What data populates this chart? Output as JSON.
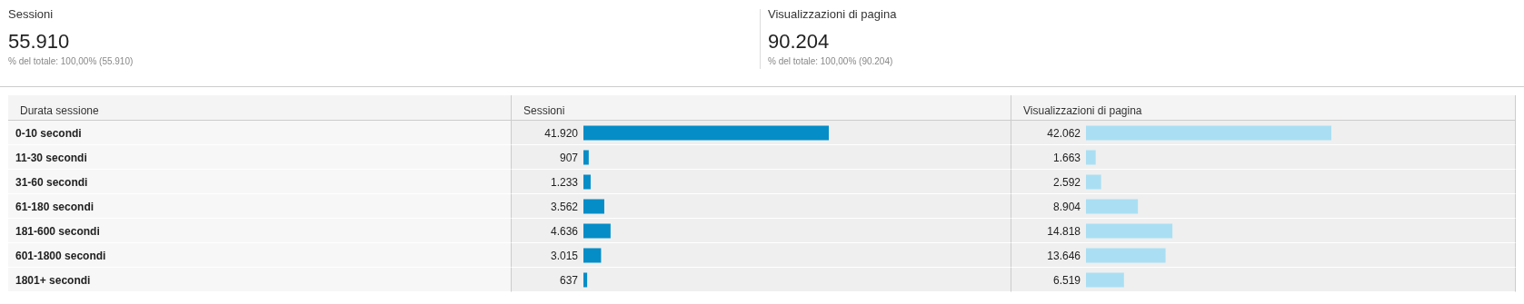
{
  "chart_data": [
    {
      "type": "other",
      "title": "Sessioni",
      "annotations": [
        "55.910",
        "% del totale: 100,00% (55.910)"
      ]
    },
    {
      "type": "other",
      "title": "Visualizzazioni di pagina",
      "annotations": [
        "90.204",
        "% del totale: 100,00% (90.204)"
      ]
    },
    {
      "type": "bar",
      "orientation": "horizontal",
      "title": "Sessioni",
      "ylabel": "Durata sessione",
      "categories": [
        "0-10 secondi",
        "11-30 secondi",
        "31-60 secondi",
        "61-180 secondi",
        "181-600 secondi",
        "601-1800 secondi",
        "1801+ secondi"
      ],
      "values": [
        41920,
        907,
        1233,
        3562,
        4636,
        3015,
        637
      ],
      "value_labels": [
        "41.920",
        "907",
        "1.233",
        "3.562",
        "4.636",
        "3.015",
        "637"
      ],
      "color": "#058dc7"
    },
    {
      "type": "bar",
      "orientation": "horizontal",
      "title": "Visualizzazioni di pagina",
      "categories": [
        null,
        null,
        null,
        null,
        null,
        null,
        null
      ],
      "values": [
        42062,
        1663,
        2592,
        8904,
        14818,
        13646,
        6519
      ],
      "value_labels": [
        "42.062",
        "1.663",
        "2.592",
        "8.904",
        "14.818",
        "13.646",
        "6.519"
      ],
      "color": "#aadff3"
    }
  ]
}
